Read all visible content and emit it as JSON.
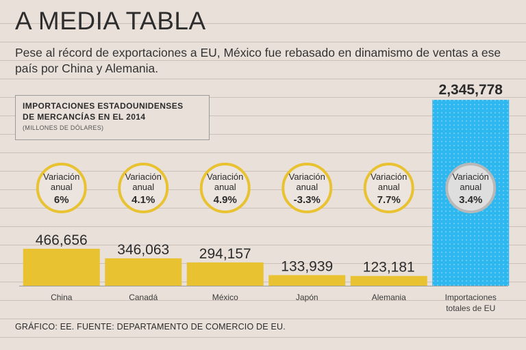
{
  "header": {
    "title": "A MEDIA TABLA",
    "subtitle": "Pese al récord de exportaciones a EU, México fue rebasado en dinamismo de ventas a ese país por China y Alemania."
  },
  "legend": {
    "title": "IMPORTACIONES ESTADOUNIDENSES\nDE MERCANCÍAS EN EL 2014",
    "unit": "(MILLONES DE DÓLARES)"
  },
  "footer": {
    "source": "GRÁFICO: EE. FUENTE: DEPARTAMENTO DE COMERCIO DE EU."
  },
  "colors": {
    "bar": "#e8c230",
    "total_bar": "#2fb7ef",
    "circle_border": "#e8c230",
    "circle_fill": "#ece4de",
    "total_circle_border": "#b8b8b8",
    "total_circle_fill": "#dedede"
  },
  "chart_data": {
    "type": "bar",
    "title": "IMPORTACIONES ESTADOUNIDENSES DE MERCANCÍAS EN EL 2014",
    "ylabel": "(MILLONES DE DÓLARES)",
    "categories": [
      "China",
      "Canadá",
      "México",
      "Japón",
      "Alemania",
      "Importaciones totales de EU"
    ],
    "values": [
      466656,
      346063,
      294157,
      133939,
      123181,
      2345778
    ],
    "value_labels": [
      "466,656",
      "346,063",
      "294,157",
      "133,939",
      "123,181",
      "2,345,778"
    ],
    "variation_label": "Variación anual",
    "variation_values": [
      "6%",
      "4.1%",
      "4.9%",
      "-3.3%",
      "7.7%",
      "3.4%"
    ]
  }
}
